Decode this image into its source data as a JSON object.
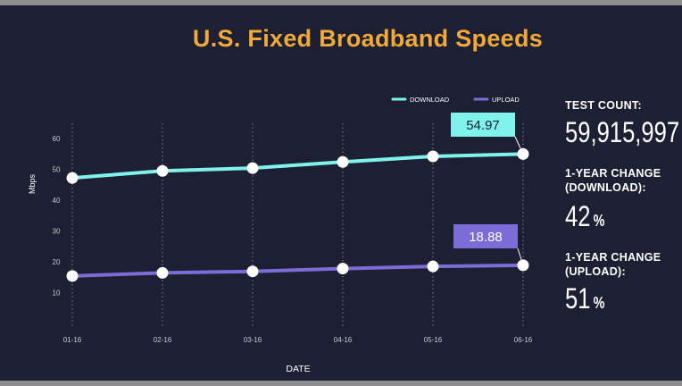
{
  "chart_data": {
    "type": "line",
    "title": "U.S. Fixed Broadband Speeds",
    "xlabel": "DATE",
    "ylabel": "Mbps",
    "categories": [
      "01-16",
      "02-16",
      "03-16",
      "04-16",
      "05-16",
      "06-16"
    ],
    "y_ticks": [
      10,
      20,
      30,
      40,
      50,
      60
    ],
    "ylim": [
      0,
      65
    ],
    "grid": "vertical dotted",
    "legend_position": "top-right",
    "series": [
      {
        "name": "DOWNLOAD",
        "color": "#7ff3eb",
        "values": [
          47.2,
          49.5,
          50.4,
          52.4,
          54.2,
          54.97
        ],
        "callout": "54.97"
      },
      {
        "name": "UPLOAD",
        "color": "#7c6cd8",
        "values": [
          15.4,
          16.4,
          16.9,
          17.8,
          18.5,
          18.88
        ],
        "callout": "18.88"
      }
    ]
  },
  "stats": [
    {
      "label_lines": [
        "TEST COUNT:"
      ],
      "value": "59,915,997",
      "unit": ""
    },
    {
      "label_lines": [
        "1-YEAR CHANGE",
        "(DOWNLOAD):"
      ],
      "value": "42",
      "unit": "%"
    },
    {
      "label_lines": [
        "1-YEAR CHANGE",
        "(UPLOAD):"
      ],
      "value": "51",
      "unit": "%"
    }
  ]
}
